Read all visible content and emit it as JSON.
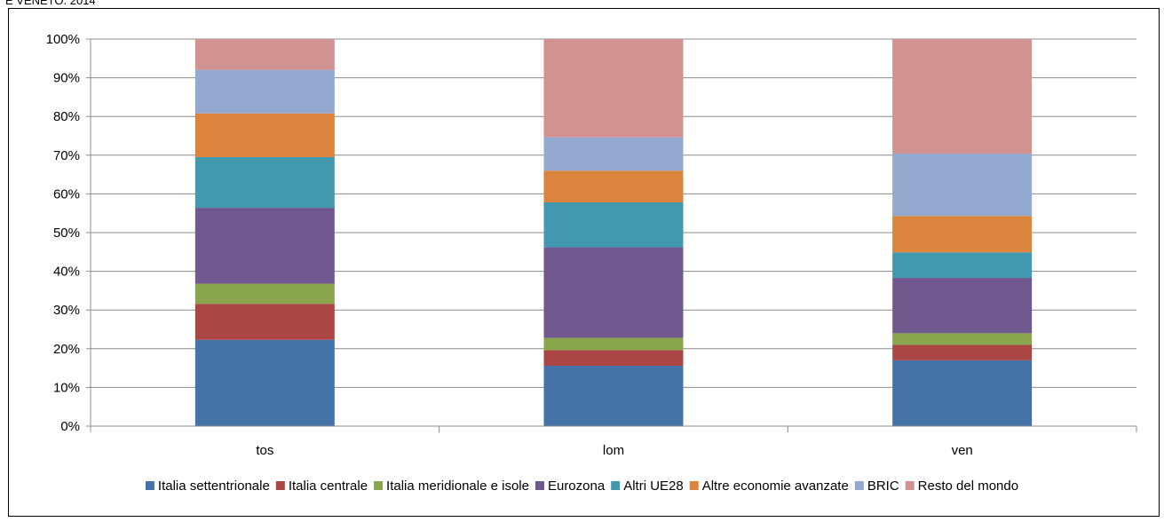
{
  "header": {
    "clipped_title": "E VENETO. 2014"
  },
  "chart_data": {
    "type": "bar",
    "stacked": true,
    "percent_stacked": true,
    "categories": [
      "tos",
      "lom",
      "ven"
    ],
    "ylim": [
      0,
      100
    ],
    "y_ticks": [
      "0%",
      "10%",
      "20%",
      "30%",
      "40%",
      "50%",
      "60%",
      "70%",
      "80%",
      "90%",
      "100%"
    ],
    "grid": true,
    "legend_position": "bottom",
    "series": [
      {
        "name": "Italia settentrionale",
        "color": "#4572A7",
        "values": [
          22.3,
          15.6,
          17.0
        ]
      },
      {
        "name": "Italia centrale",
        "color": "#AA4643",
        "values": [
          9.3,
          4.0,
          4.0
        ]
      },
      {
        "name": "Italia meridionale e isole",
        "color": "#89A54E",
        "values": [
          5.2,
          3.2,
          3.0
        ]
      },
      {
        "name": "Eurozona",
        "color": "#71588F",
        "values": [
          19.6,
          23.4,
          14.3
        ]
      },
      {
        "name": "Altri UE28",
        "color": "#4198AF",
        "values": [
          13.1,
          11.6,
          6.6
        ]
      },
      {
        "name": "Altre economie avanzate",
        "color": "#DB843D",
        "values": [
          11.3,
          8.2,
          9.4
        ]
      },
      {
        "name": "BRIC",
        "color": "#93A9CF",
        "values": [
          11.2,
          8.6,
          16.1
        ]
      },
      {
        "name": "Resto del mondo",
        "color": "#D19392",
        "values": [
          8.0,
          25.4,
          29.6
        ]
      }
    ]
  }
}
